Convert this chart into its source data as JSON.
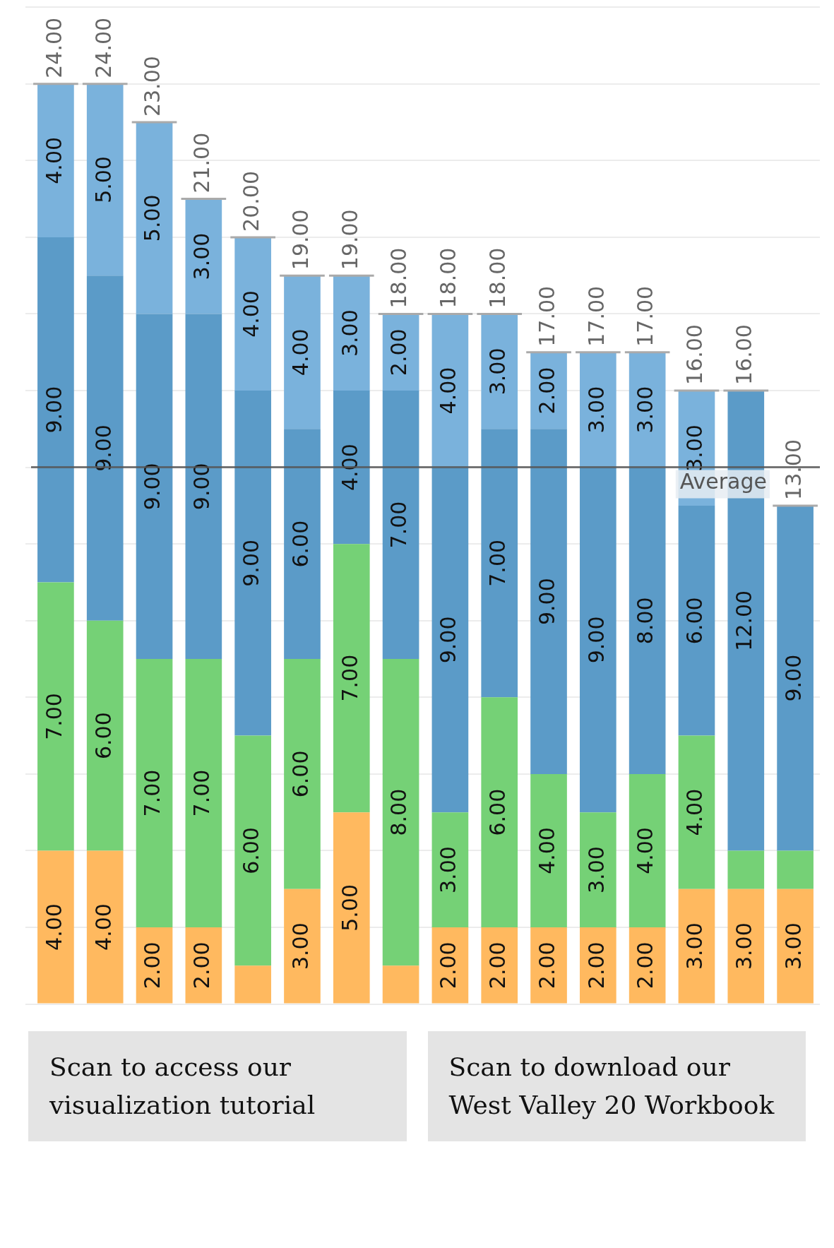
{
  "chart_data": {
    "type": "bar",
    "stacked": true,
    "categories": [
      null,
      null,
      null,
      null,
      null,
      null,
      null,
      null,
      null,
      null,
      null,
      null,
      null,
      null,
      null,
      null
    ],
    "series": [
      {
        "color": "#ffb95f",
        "values": [
          4,
          4,
          2,
          2,
          1,
          3,
          5,
          1,
          2,
          2,
          2,
          2,
          2,
          3,
          3,
          3
        ],
        "value_labels": [
          "4.00",
          "4.00",
          "2.00",
          "2.00",
          null,
          "3.00",
          "5.00",
          null,
          "2.00",
          "2.00",
          "2.00",
          "2.00",
          "2.00",
          "3.00",
          "3.00",
          "3.00"
        ]
      },
      {
        "color": "#75d176",
        "values": [
          7,
          6,
          7,
          7,
          6,
          6,
          7,
          8,
          3,
          6,
          4,
          3,
          4,
          4,
          1,
          1
        ],
        "value_labels": [
          "7.00",
          "6.00",
          "7.00",
          "7.00",
          "6.00",
          "6.00",
          "7.00",
          "8.00",
          "3.00",
          "6.00",
          "4.00",
          "3.00",
          "4.00",
          "4.00",
          null,
          null
        ]
      },
      {
        "color": "#5b9bc8",
        "values": [
          9,
          9,
          9,
          9,
          9,
          6,
          4,
          7,
          9,
          7,
          9,
          9,
          8,
          6,
          12,
          9
        ],
        "value_labels": [
          "9.00",
          "9.00",
          "9.00",
          "9.00",
          "9.00",
          "6.00",
          "4.00",
          "7.00",
          "9.00",
          "7.00",
          "9.00",
          "9.00",
          "8.00",
          "6.00",
          "12.00",
          "9.00"
        ]
      },
      {
        "color": "#7ab2dc",
        "values": [
          4,
          5,
          5,
          3,
          4,
          4,
          3,
          2,
          4,
          3,
          2,
          3,
          3,
          3,
          null,
          null
        ],
        "value_labels": [
          "4.00",
          "5.00",
          "5.00",
          "3.00",
          "4.00",
          "4.00",
          "3.00",
          "2.00",
          "4.00",
          "3.00",
          "2.00",
          "3.00",
          "3.00",
          "3.00",
          null,
          null
        ]
      }
    ],
    "totals": [
      "24.00",
      "24.00",
      "23.00",
      "21.00",
      "20.00",
      "19.00",
      "19.00",
      "18.00",
      "18.00",
      "18.00",
      "17.00",
      "17.00",
      "17.00",
      "16.00",
      "16.00",
      "13.00"
    ],
    "ylim": [
      0,
      26
    ],
    "yticks": [
      {
        "value": 0,
        "label": null
      },
      {
        "value": 2,
        "label": null
      },
      {
        "value": 4,
        "label": null
      },
      {
        "value": 6,
        "label": null
      },
      {
        "value": 8,
        "label": null
      },
      {
        "value": 10,
        "label": null
      },
      {
        "value": 12,
        "label": null
      },
      {
        "value": 14,
        "label": null
      },
      {
        "value": 16,
        "label": null
      },
      {
        "value": 18,
        "label": null
      },
      {
        "value": 20,
        "label": null
      },
      {
        "value": 22,
        "label": null
      },
      {
        "value": 24,
        "label": null
      },
      {
        "value": 26,
        "label": null
      }
    ],
    "grid": "y",
    "ref_lines": [
      {
        "axis": "y",
        "value": 14,
        "label": "Average",
        "color": "#555555"
      }
    ],
    "annotations": [
      "Scan to access our visualization tutorial",
      "Scan to download our West Valley 20 Workbook"
    ]
  }
}
